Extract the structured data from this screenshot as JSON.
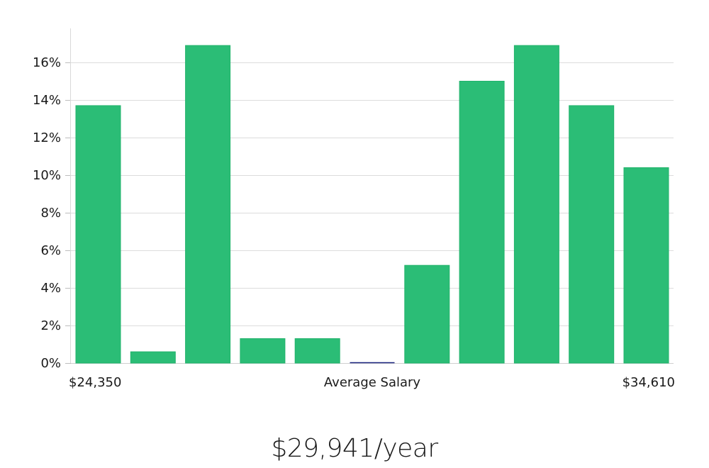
{
  "chart_data": {
    "type": "bar",
    "title": "",
    "xlabel": "Average Salary",
    "ylabel": "",
    "x_range_labels": {
      "min": "$24,350",
      "max": "$34,610"
    },
    "y_ticks": [
      "0%",
      "2%",
      "4%",
      "6%",
      "8%",
      "10%",
      "12%",
      "14%",
      "16%"
    ],
    "ylim": [
      0,
      17.6
    ],
    "grid": true,
    "values": [
      13.7,
      0.6,
      16.9,
      1.3,
      1.3,
      0.0,
      5.2,
      15.0,
      16.9,
      13.7,
      10.4
    ],
    "bar_color": "#2bbd76",
    "zero_bar_color": "#1a237e"
  },
  "summary": {
    "average": "$29,941/year"
  }
}
